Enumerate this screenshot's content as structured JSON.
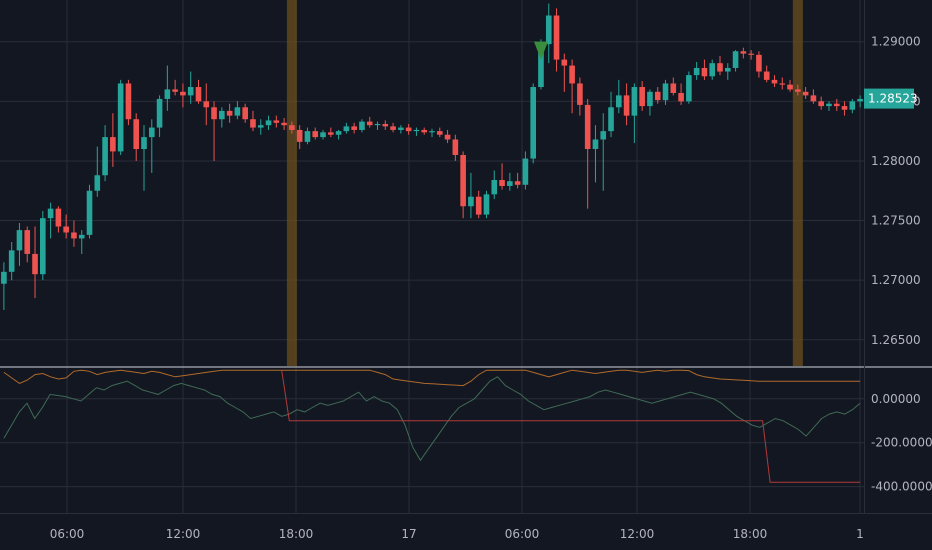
{
  "colors": {
    "background": "#131722",
    "grid": "#2a2e39",
    "up": "#26a69a",
    "down": "#ef5350",
    "session_band": "#6b4f1d",
    "axis_text": "#b2b5be",
    "signal_marker": "#388e3c",
    "osc_orange": "#b06a2a",
    "osc_green": "#3f6b55",
    "osc_red": "#b03a3a",
    "divider": "#d1d4dc"
  },
  "chart_data": [
    {
      "type": "candlestick",
      "title": "",
      "ylim": [
        1.2628,
        1.2935
      ],
      "y_ticks": [
        "1.26500",
        "1.27000",
        "1.27500",
        "1.28000",
        "1.28500",
        "1.29000"
      ],
      "y_tick_values": [
        1.265,
        1.27,
        1.275,
        1.28,
        1.285,
        1.29
      ],
      "x_ticks": [
        "06:00",
        "12:00",
        "18:00",
        "17",
        "06:00",
        "12:00",
        "18:00",
        "1"
      ],
      "last_price_label": "1.28523",
      "last_price": 1.28523,
      "session_band_candles": [
        37,
        102
      ],
      "signal_marker_candle": 69,
      "signal_marker_price": 1.2885,
      "candles": [
        [
          1.2697,
          1.2715,
          1.2675,
          1.2707
        ],
        [
          1.2707,
          1.2732,
          1.27,
          1.2725
        ],
        [
          1.2725,
          1.2748,
          1.2712,
          1.2742
        ],
        [
          1.2742,
          1.2745,
          1.2715,
          1.2722
        ],
        [
          1.2722,
          1.2745,
          1.2685,
          1.2705
        ],
        [
          1.2705,
          1.2758,
          1.27,
          1.2752
        ],
        [
          1.2752,
          1.2765,
          1.2735,
          1.276
        ],
        [
          1.276,
          1.2762,
          1.274,
          1.2745
        ],
        [
          1.2745,
          1.2755,
          1.2735,
          1.274
        ],
        [
          1.274,
          1.275,
          1.2728,
          1.2735
        ],
        [
          1.2735,
          1.2742,
          1.2722,
          1.2738
        ],
        [
          1.2738,
          1.278,
          1.2735,
          1.2775
        ],
        [
          1.2775,
          1.2812,
          1.277,
          1.2788
        ],
        [
          1.2788,
          1.283,
          1.2783,
          1.282
        ],
        [
          1.282,
          1.284,
          1.2795,
          1.2808
        ],
        [
          1.2808,
          1.2868,
          1.2805,
          1.2865
        ],
        [
          1.2865,
          1.2868,
          1.283,
          1.2835
        ],
        [
          1.2835,
          1.284,
          1.28,
          1.281
        ],
        [
          1.281,
          1.283,
          1.2775,
          1.282
        ],
        [
          1.282,
          1.2835,
          1.279,
          1.2828
        ],
        [
          1.2828,
          1.2855,
          1.282,
          1.2852
        ],
        [
          1.2852,
          1.288,
          1.2842,
          1.286
        ],
        [
          1.286,
          1.2868,
          1.2855,
          1.2858
        ],
        [
          1.2858,
          1.2865,
          1.2845,
          1.2855
        ],
        [
          1.2855,
          1.2875,
          1.2848,
          1.2862
        ],
        [
          1.2862,
          1.2868,
          1.2848,
          1.285
        ],
        [
          1.285,
          1.2865,
          1.283,
          1.2845
        ],
        [
          1.2845,
          1.285,
          1.28,
          1.2835
        ],
        [
          1.2835,
          1.2845,
          1.2828,
          1.2842
        ],
        [
          1.2842,
          1.2848,
          1.2832,
          1.2838
        ],
        [
          1.2838,
          1.285,
          1.2835,
          1.2845
        ],
        [
          1.2845,
          1.2848,
          1.2832,
          1.2835
        ],
        [
          1.2835,
          1.2842,
          1.2825,
          1.2828
        ],
        [
          1.2828,
          1.2835,
          1.2822,
          1.283
        ],
        [
          1.283,
          1.2838,
          1.2826,
          1.2834
        ],
        [
          1.2834,
          1.2838,
          1.2828,
          1.2832
        ],
        [
          1.2832,
          1.2836,
          1.2826,
          1.283
        ],
        [
          1.283,
          1.2833,
          1.2823,
          1.2826
        ],
        [
          1.2826,
          1.283,
          1.281,
          1.2816
        ],
        [
          1.2816,
          1.2828,
          1.2814,
          1.2825
        ],
        [
          1.2825,
          1.2828,
          1.2818,
          1.282
        ],
        [
          1.282,
          1.2826,
          1.2818,
          1.2824
        ],
        [
          1.2824,
          1.2828,
          1.282,
          1.2822
        ],
        [
          1.2822,
          1.2826,
          1.2818,
          1.2825
        ],
        [
          1.2825,
          1.2832,
          1.2823,
          1.2829
        ],
        [
          1.2829,
          1.2832,
          1.2823,
          1.2826
        ],
        [
          1.2826,
          1.2835,
          1.2824,
          1.2833
        ],
        [
          1.2833,
          1.2837,
          1.2828,
          1.283
        ],
        [
          1.283,
          1.2833,
          1.2826,
          1.2831
        ],
        [
          1.2831,
          1.2834,
          1.2826,
          1.2829
        ],
        [
          1.2829,
          1.2832,
          1.2824,
          1.2826
        ],
        [
          1.2826,
          1.283,
          1.2823,
          1.2828
        ],
        [
          1.2828,
          1.2831,
          1.2822,
          1.2825
        ],
        [
          1.2825,
          1.2828,
          1.2821,
          1.2826
        ],
        [
          1.2826,
          1.2828,
          1.2822,
          1.2824
        ],
        [
          1.2824,
          1.2827,
          1.282,
          1.2825
        ],
        [
          1.2825,
          1.2828,
          1.282,
          1.2822
        ],
        [
          1.2822,
          1.2826,
          1.2815,
          1.2818
        ],
        [
          1.2818,
          1.2822,
          1.28,
          1.2805
        ],
        [
          1.2805,
          1.2808,
          1.2752,
          1.2762
        ],
        [
          1.2762,
          1.279,
          1.2752,
          1.277
        ],
        [
          1.277,
          1.2775,
          1.2752,
          1.2755
        ],
        [
          1.2755,
          1.2775,
          1.2752,
          1.2772
        ],
        [
          1.2772,
          1.2792,
          1.2768,
          1.2784
        ],
        [
          1.2784,
          1.2798,
          1.2776,
          1.2779
        ],
        [
          1.2779,
          1.279,
          1.2775,
          1.2783
        ],
        [
          1.2783,
          1.279,
          1.2777,
          1.278
        ],
        [
          1.278,
          1.2808,
          1.2776,
          1.2802
        ],
        [
          1.2802,
          1.2865,
          1.2798,
          1.2862
        ],
        [
          1.2862,
          1.2902,
          1.286,
          1.2898
        ],
        [
          1.2898,
          1.2932,
          1.2882,
          1.2922
        ],
        [
          1.2922,
          1.2928,
          1.2875,
          1.2885
        ],
        [
          1.2885,
          1.289,
          1.2858,
          1.288
        ],
        [
          1.288,
          1.2885,
          1.284,
          1.2865
        ],
        [
          1.2865,
          1.287,
          1.2838,
          1.2847
        ],
        [
          1.2847,
          1.2852,
          1.276,
          1.281
        ],
        [
          1.281,
          1.283,
          1.2782,
          1.2818
        ],
        [
          1.2818,
          1.284,
          1.2775,
          1.2825
        ],
        [
          1.2825,
          1.2858,
          1.282,
          1.2845
        ],
        [
          1.2845,
          1.2868,
          1.284,
          1.2855
        ],
        [
          1.2855,
          1.2865,
          1.283,
          1.2838
        ],
        [
          1.2838,
          1.2865,
          1.2815,
          1.2862
        ],
        [
          1.2862,
          1.2867,
          1.2842,
          1.2846
        ],
        [
          1.2846,
          1.286,
          1.2838,
          1.2858
        ],
        [
          1.2858,
          1.2862,
          1.2848,
          1.2851
        ],
        [
          1.2851,
          1.2868,
          1.2847,
          1.2865
        ],
        [
          1.2865,
          1.287,
          1.2855,
          1.2857
        ],
        [
          1.2857,
          1.2865,
          1.2847,
          1.285
        ],
        [
          1.285,
          1.2875,
          1.2848,
          1.2872
        ],
        [
          1.2872,
          1.2883,
          1.2868,
          1.2878
        ],
        [
          1.2878,
          1.2885,
          1.2868,
          1.2871
        ],
        [
          1.2871,
          1.2885,
          1.2868,
          1.2882
        ],
        [
          1.2882,
          1.2888,
          1.2872,
          1.2875
        ],
        [
          1.2875,
          1.2882,
          1.2868,
          1.2878
        ],
        [
          1.2878,
          1.2893,
          1.2875,
          1.2892
        ],
        [
          1.2892,
          1.2895,
          1.2886,
          1.289
        ],
        [
          1.289,
          1.2893,
          1.2885,
          1.2889
        ],
        [
          1.2889,
          1.2892,
          1.287,
          1.2875
        ],
        [
          1.2875,
          1.288,
          1.2866,
          1.2868
        ],
        [
          1.2868,
          1.2872,
          1.2862,
          1.2865
        ],
        [
          1.2865,
          1.287,
          1.286,
          1.2864
        ],
        [
          1.2864,
          1.2868,
          1.2858,
          1.286
        ],
        [
          1.286,
          1.2864,
          1.2855,
          1.2858
        ],
        [
          1.2858,
          1.2862,
          1.2852,
          1.2855
        ],
        [
          1.2855,
          1.286,
          1.2848,
          1.285
        ],
        [
          1.285,
          1.2854,
          1.2843,
          1.2846
        ],
        [
          1.2846,
          1.285,
          1.2842,
          1.2848
        ],
        [
          1.2848,
          1.2852,
          1.2842,
          1.2846
        ],
        [
          1.2846,
          1.285,
          1.2838,
          1.2843
        ],
        [
          1.2843,
          1.2852,
          1.284,
          1.285
        ],
        [
          1.285,
          1.2855,
          1.2845,
          1.2852
        ]
      ]
    },
    {
      "type": "line",
      "title": "",
      "ylim": [
        -520,
        140
      ],
      "y_ticks": [
        "0.00000",
        "-200.00000",
        "-400.00000"
      ],
      "y_tick_values": [
        0,
        -200,
        -400
      ],
      "series": [
        {
          "name": "",
          "color_key": "osc_orange",
          "values": [
            120,
            95,
            70,
            85,
            110,
            115,
            100,
            90,
            95,
            125,
            130,
            125,
            110,
            120,
            125,
            130,
            125,
            120,
            115,
            125,
            120,
            110,
            100,
            105,
            110,
            115,
            120,
            125,
            130,
            130,
            130,
            130,
            130,
            130,
            130,
            130,
            130,
            130,
            130,
            130,
            130,
            130,
            130,
            130,
            130,
            130,
            130,
            130,
            120,
            110,
            90,
            85,
            80,
            75,
            70,
            68,
            66,
            64,
            62,
            60,
            80,
            110,
            130,
            130,
            130,
            130,
            130,
            130,
            120,
            110,
            100,
            110,
            120,
            130,
            125,
            120,
            115,
            120,
            125,
            130,
            130,
            125,
            120,
            125,
            130,
            125,
            130,
            130,
            128,
            110,
            100,
            95,
            90,
            88,
            86,
            84,
            82,
            80,
            80,
            80,
            80,
            80,
            80,
            80,
            80,
            80,
            80,
            80,
            80,
            80,
            80
          ]
        },
        {
          "name": "",
          "color_key": "osc_green",
          "values": [
            -180,
            -120,
            -60,
            -20,
            -90,
            -40,
            20,
            15,
            10,
            0,
            -10,
            20,
            50,
            40,
            60,
            70,
            80,
            60,
            40,
            30,
            20,
            40,
            60,
            70,
            60,
            50,
            40,
            20,
            10,
            -20,
            -40,
            -60,
            -90,
            -80,
            -70,
            -60,
            -80,
            -70,
            -50,
            -60,
            -40,
            -20,
            -30,
            -20,
            -10,
            10,
            30,
            -10,
            10,
            -10,
            -20,
            -50,
            -120,
            -220,
            -280,
            -230,
            -180,
            -130,
            -80,
            -40,
            -20,
            0,
            40,
            80,
            100,
            60,
            40,
            20,
            -10,
            -30,
            -50,
            -40,
            -30,
            -20,
            -10,
            0,
            10,
            30,
            40,
            30,
            20,
            10,
            0,
            -10,
            -20,
            -10,
            0,
            10,
            20,
            30,
            20,
            10,
            0,
            -20,
            -50,
            -80,
            -100,
            -120,
            -130,
            -110,
            -90,
            -100,
            -120,
            -140,
            -170,
            -130,
            -90,
            -70,
            -60,
            -70,
            -50,
            -20
          ]
        },
        {
          "name": "",
          "color_key": "osc_red",
          "values": [
            null,
            null,
            null,
            null,
            null,
            null,
            null,
            null,
            null,
            null,
            null,
            null,
            null,
            null,
            null,
            null,
            null,
            null,
            null,
            null,
            null,
            null,
            null,
            null,
            null,
            null,
            null,
            null,
            null,
            null,
            null,
            null,
            null,
            null,
            null,
            null,
            null,
            130,
            -100,
            -100,
            -100,
            -100,
            -100,
            -100,
            -100,
            -100,
            -100,
            -100,
            -100,
            -100,
            -100,
            -100,
            -100,
            -100,
            -100,
            -100,
            -100,
            -100,
            -100,
            -100,
            -100,
            -100,
            -100,
            -100,
            -100,
            -100,
            -100,
            -100,
            -100,
            -100,
            -100,
            -100,
            -100,
            -100,
            -100,
            -100,
            -100,
            -100,
            -100,
            -100,
            -100,
            -100,
            -100,
            -100,
            -100,
            -100,
            -100,
            -100,
            -100,
            -100,
            -100,
            -100,
            -100,
            -100,
            -100,
            -100,
            -100,
            -100,
            -100,
            -100,
            -100,
            -100,
            -380,
            -380,
            -380,
            -380,
            -380,
            -380,
            -380,
            -380,
            -380,
            -380,
            -380,
            -380,
            -380
          ]
        }
      ]
    }
  ]
}
